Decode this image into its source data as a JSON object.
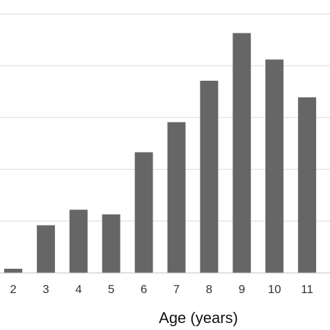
{
  "chart_data": {
    "type": "bar",
    "categories": [
      "2",
      "3",
      "4",
      "5",
      "6",
      "7",
      "8",
      "9",
      "10",
      "11"
    ],
    "values": [
      0.8,
      9.2,
      12.2,
      11.3,
      23.3,
      29.1,
      37.1,
      46.3,
      41.2,
      33.9
    ],
    "xlabel": "Age (years)",
    "ylabel": "",
    "ylim": [
      0,
      50
    ],
    "grid": true,
    "bar_color": "#666666",
    "grid_color": "#d9d9d9",
    "axis_color": "#bfbfbf"
  }
}
